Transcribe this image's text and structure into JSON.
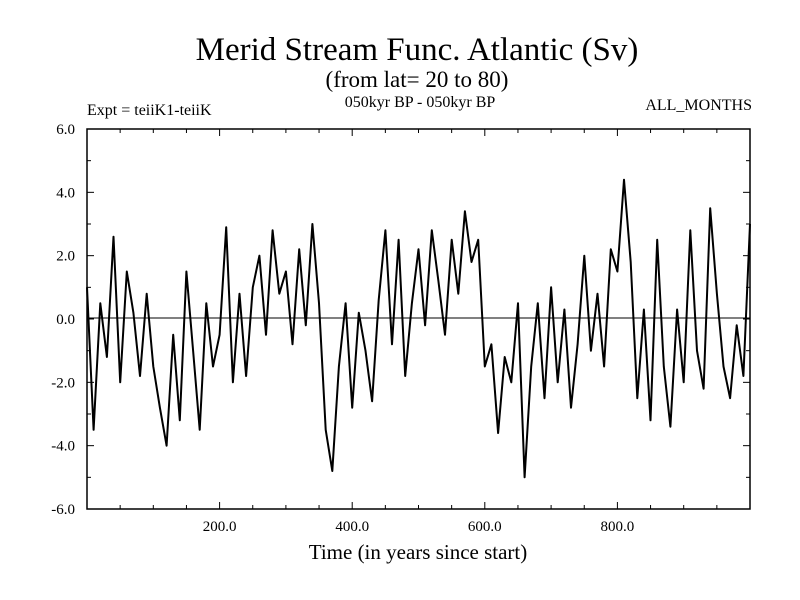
{
  "chart_data": {
    "type": "line",
    "title": "Merid Stream Func. Atlantic (Sv)",
    "subtitle": "(from lat= 20 to 80)",
    "info_left": "Expt = teiiK1-teiiK",
    "info_center": "050kyr BP - 050kyr BP",
    "info_right": "ALL_MONTHS",
    "xlabel": "Time (in years since start)",
    "ylabel": "",
    "xlim": [
      0,
      1000
    ],
    "ylim": [
      -6,
      6
    ],
    "xticks": [
      200,
      400,
      600,
      800
    ],
    "xtick_labels": [
      "200.0",
      "400.0",
      "600.0",
      "800.0"
    ],
    "yticks": [
      -6,
      -4,
      -2,
      0,
      2,
      4,
      6
    ],
    "ytick_labels": [
      "-6.0",
      "-4.0",
      "-2.0",
      "0.0",
      "2.0",
      "4.0",
      "6.0"
    ],
    "zero_line": true,
    "grid": false,
    "line_color": "#000000",
    "series": [
      {
        "x": [
          0,
          10,
          20,
          30,
          40,
          50,
          60,
          70,
          80,
          90,
          100,
          110,
          120,
          130,
          140,
          150,
          160,
          170,
          180,
          190,
          200,
          210,
          220,
          230,
          240,
          250,
          260,
          270,
          280,
          290,
          300,
          310,
          320,
          330,
          340,
          350,
          360,
          370,
          380,
          390,
          400,
          410,
          420,
          430,
          440,
          450,
          460,
          470,
          480,
          490,
          500,
          510,
          520,
          530,
          540,
          550,
          560,
          570,
          580,
          590,
          600,
          610,
          620,
          630,
          640,
          650,
          660,
          670,
          680,
          690,
          700,
          710,
          720,
          730,
          740,
          750,
          760,
          770,
          780,
          790,
          800,
          810,
          820,
          830,
          840,
          850,
          860,
          870,
          880,
          890,
          900,
          910,
          920,
          930,
          940,
          950,
          960,
          970,
          980,
          990,
          1000
        ],
        "values": [
          1.0,
          -3.5,
          0.5,
          -1.2,
          2.6,
          -2.0,
          1.5,
          0.2,
          -1.8,
          0.8,
          -1.5,
          -2.8,
          -4.0,
          -0.5,
          -3.2,
          1.5,
          -1.0,
          -3.5,
          0.5,
          -1.5,
          -0.5,
          2.9,
          -2.0,
          0.8,
          -1.8,
          1.0,
          2.0,
          -0.5,
          2.8,
          0.8,
          1.5,
          -0.8,
          2.2,
          -0.2,
          3.0,
          0.5,
          -3.5,
          -4.8,
          -1.5,
          0.5,
          -2.8,
          0.2,
          -1.0,
          -2.6,
          0.6,
          2.8,
          -0.8,
          2.5,
          -1.8,
          0.5,
          2.2,
          -0.2,
          2.8,
          1.2,
          -0.5,
          2.5,
          0.8,
          3.4,
          1.8,
          2.5,
          -1.5,
          -0.8,
          -3.6,
          -1.2,
          -2.0,
          0.5,
          -5.0,
          -1.5,
          0.5,
          -2.5,
          1.0,
          -2.0,
          0.3,
          -2.8,
          -0.8,
          2.0,
          -1.0,
          0.8,
          -1.5,
          2.2,
          1.5,
          4.4,
          1.8,
          -2.5,
          0.3,
          -3.2,
          2.5,
          -1.5,
          -3.4,
          0.3,
          -2.0,
          2.8,
          -1.0,
          -2.2,
          3.5,
          0.8,
          -1.5,
          -2.5,
          -0.2,
          -1.8,
          3.0
        ]
      }
    ]
  }
}
